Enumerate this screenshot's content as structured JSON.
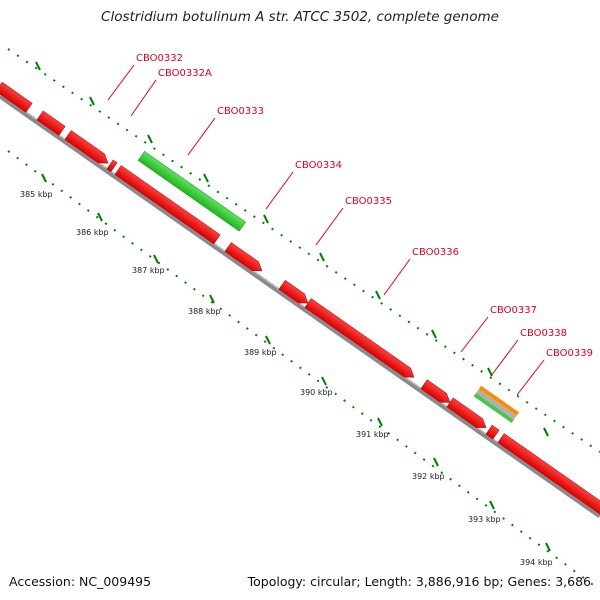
{
  "title": "Clostridium botulinum A str. ATCC 3502, complete genome",
  "footer": {
    "accession": "Accession: NC_009495",
    "summary": "Topology: circular; Length: 3,886,916 bp; Genes: 3,686"
  },
  "colors": {
    "forward_gene": "#ff0000",
    "reverse_gene": "#ff0000",
    "rna_gene": "#2fcc2f",
    "pseudo_outline": "#ff8a00",
    "backbone": "#8a8a8a",
    "ticks": "#008000",
    "label": "#e0001a"
  },
  "scale_labels": [
    "385 kbp",
    "386 kbp",
    "387 kbp",
    "388 kbp",
    "389 kbp",
    "390 kbp",
    "391 kbp",
    "392 kbp",
    "393 kbp",
    "394 kbp"
  ],
  "gene_labels": [
    "CBO0332",
    "CBO0332A",
    "CBO0333",
    "CBO0334",
    "CBO0335",
    "CBO0336",
    "CBO0337",
    "CBO0338",
    "CBO0339"
  ]
}
